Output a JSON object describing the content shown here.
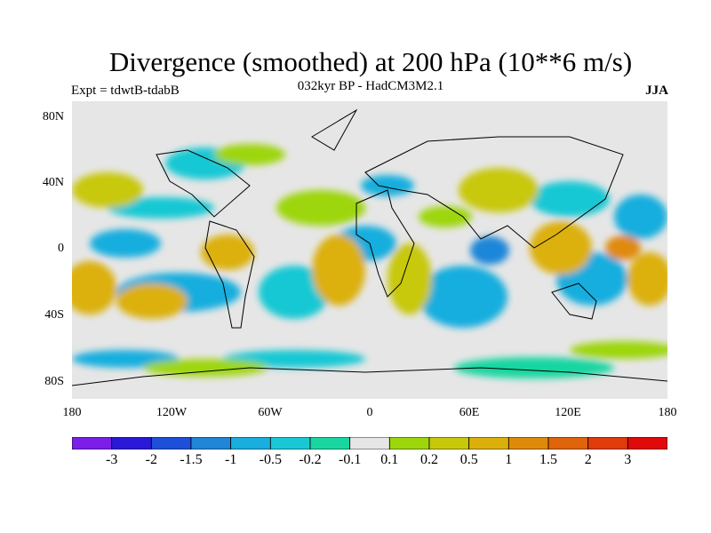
{
  "title": "Divergence (smoothed) at 200 hPa (10**6 m/s)",
  "subtitle": "032kyr BP - HadCM3M2.1",
  "experiment": "Expt = tdwtB-tdabB",
  "season": "JJA",
  "lat_labels": [
    "80N",
    "40N",
    "0",
    "40S",
    "80S"
  ],
  "lon_labels": [
    "180",
    "120W",
    "60W",
    "0",
    "60E",
    "120E",
    "180"
  ],
  "colorbar": {
    "labels": [
      "-3",
      "-2",
      "-1.5",
      "-1",
      "-0.5",
      "-0.2",
      "-0.1",
      "0.1",
      "0.2",
      "0.5",
      "1",
      "1.5",
      "2",
      "3"
    ],
    "colors": [
      "#7a1ee8",
      "#2a19d6",
      "#1e4fd8",
      "#1f86d8",
      "#19aede",
      "#19c8d4",
      "#19d6a0",
      "#e6e6e6",
      "#9dd60a",
      "#c8c80a",
      "#dcb00a",
      "#e08a0a",
      "#e0640a",
      "#e03c0a",
      "#e00a0a"
    ]
  }
}
